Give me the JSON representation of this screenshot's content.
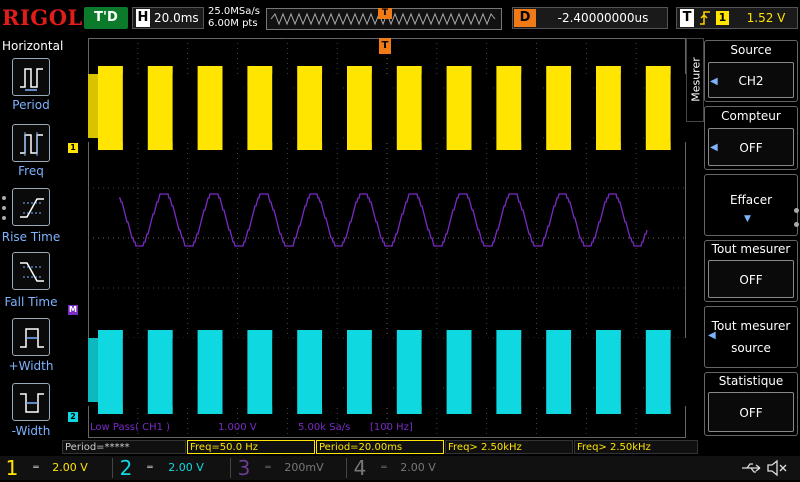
{
  "header": {
    "logo": "RIGOL",
    "trigger_status": "T'D",
    "horizontal_label": "H",
    "timebase": "20.0ms",
    "sample_rate": "25.0MSa/s",
    "memory_depth": "6.00M pts",
    "trigger_pos_marker": "T",
    "delay_label": "D",
    "delay": "-2.40000000us",
    "trigger_label": "T",
    "trigger_edge_icon": "rising-edge-icon",
    "trigger_source": "1",
    "trigger_level": "1.52 V"
  },
  "left_menu": {
    "title": "Horizontal",
    "items": [
      {
        "label": "Period",
        "icon": "period-icon"
      },
      {
        "label": "Freq",
        "icon": "frequency-icon"
      },
      {
        "label": "Rise Time",
        "icon": "rise-time-icon"
      },
      {
        "label": "Fall Time",
        "icon": "fall-time-icon"
      },
      {
        "label": "+Width",
        "icon": "positive-width-icon"
      },
      {
        "label": "-Width",
        "icon": "negative-width-icon"
      }
    ]
  },
  "screen": {
    "channel_markers": {
      "ch1": "1",
      "math": "M",
      "ch2": "2"
    },
    "trigger_position_marker": "T",
    "math_info": {
      "filter": "Low Pass( CH1 )",
      "scale": "1.000 V",
      "rate": "5.00k Sa/s",
      "cutoff": "[100 Hz]"
    },
    "colors": {
      "ch1": "#ffe500",
      "ch2": "#10d8e0",
      "math": "#7b2bc6",
      "trigger": "#f07b16",
      "grid": "#555555"
    }
  },
  "measurements": [
    "Period=*****",
    "Freq=50.0 Hz",
    "Period=20.00ms",
    "Freq> 2.50kHz",
    "Freq> 2.50kHz"
  ],
  "channels": [
    {
      "num": "1",
      "coupling": "═",
      "scale": "2.00 V",
      "color": "#ffe500"
    },
    {
      "num": "2",
      "coupling": "═",
      "scale": "2.00 V",
      "color": "#10d8e0"
    },
    {
      "num": "3",
      "coupling": "═",
      "scale": "200mV",
      "color": "#555555"
    },
    {
      "num": "4",
      "coupling": "═",
      "scale": "2.00 V",
      "color": "#555555"
    }
  ],
  "status_icons": [
    "usb-icon",
    "speaker-muted-icon"
  ],
  "right_menu": {
    "tab_label": "Mesurer",
    "items": [
      {
        "title": "Source",
        "value": "CH2"
      },
      {
        "title": "Compteur",
        "value": "OFF"
      },
      {
        "title": "Effacer",
        "value": ""
      },
      {
        "title": "Tout mesurer",
        "value": "OFF"
      },
      {
        "title": "Tout mesurer",
        "value": "source"
      },
      {
        "title": "Statistique",
        "value": "OFF"
      }
    ]
  }
}
